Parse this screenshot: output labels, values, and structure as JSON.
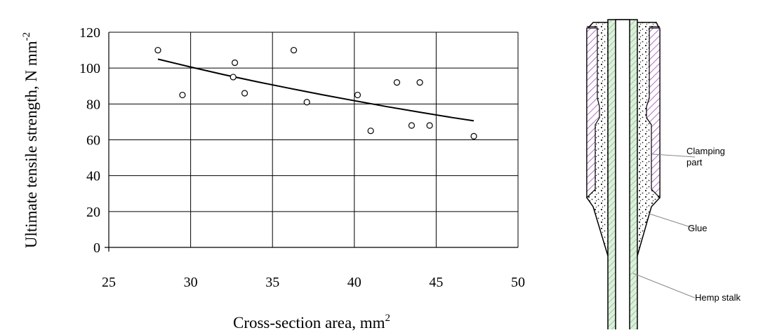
{
  "chart_data": {
    "type": "scatter",
    "xlabel": "Cross-section area, mm",
    "xlabel_sup": "2",
    "ylabel": "Ultimate tensile strength, N mm",
    "ylabel_sup": "-2",
    "xlim": [
      25,
      50
    ],
    "ylim": [
      0,
      120
    ],
    "x_ticks": [
      25,
      30,
      35,
      40,
      45,
      50
    ],
    "y_ticks": [
      0,
      20,
      40,
      60,
      80,
      100,
      120
    ],
    "grid": true,
    "points": [
      {
        "x": 28.0,
        "y": 110
      },
      {
        "x": 29.5,
        "y": 85
      },
      {
        "x": 32.7,
        "y": 103
      },
      {
        "x": 32.6,
        "y": 95
      },
      {
        "x": 33.3,
        "y": 86
      },
      {
        "x": 36.3,
        "y": 110
      },
      {
        "x": 37.1,
        "y": 81
      },
      {
        "x": 40.2,
        "y": 85
      },
      {
        "x": 41.0,
        "y": 65
      },
      {
        "x": 42.6,
        "y": 92
      },
      {
        "x": 44.0,
        "y": 92
      },
      {
        "x": 43.5,
        "y": 68
      },
      {
        "x": 44.6,
        "y": 68
      },
      {
        "x": 47.3,
        "y": 62
      }
    ],
    "trendline": {
      "x": [
        28,
        30,
        32,
        34,
        36,
        38,
        40,
        42,
        44,
        46,
        47.3
      ],
      "y": [
        105,
        100.6,
        96.4,
        92.5,
        88.8,
        85.2,
        81.8,
        78.5,
        75.4,
        72.4,
        70.6
      ]
    }
  },
  "diagram": {
    "labels": {
      "clamping_line1": "Clamping",
      "clamping_line2": "part",
      "glue": "Glue",
      "hemp": "Hemp stalk"
    }
  }
}
